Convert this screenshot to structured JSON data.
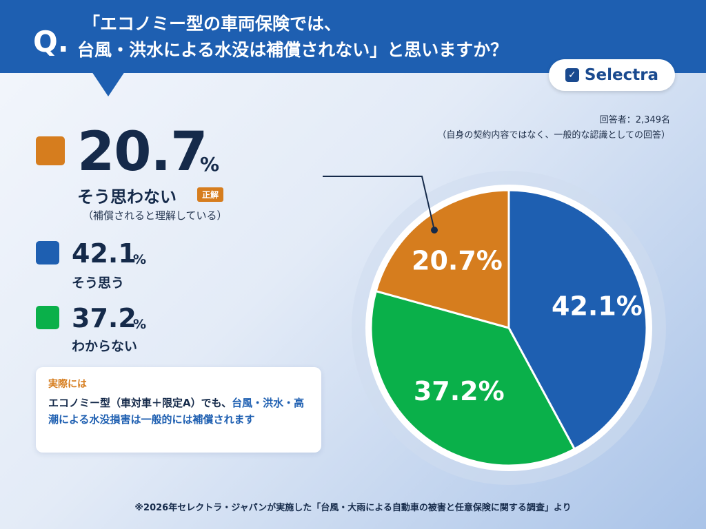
{
  "header": {
    "q_mark": "Q.",
    "title_line1": "「エコノミー型の車両保険では、",
    "title_line2": "台風・洪水による水没は補償されない」と思いますか？"
  },
  "brand": {
    "name": "Selectra",
    "check_glyph": "✓"
  },
  "respondents": {
    "count_label": "回答者：2,349名",
    "note": "（自身の契約内容ではなく、一般的な認識としての回答）"
  },
  "legend": [
    {
      "value": "20.7",
      "unit": "%",
      "label": "そう思わない",
      "badge": "正解",
      "sub": "（補償されると理解している）",
      "color": "#d67d1e"
    },
    {
      "value": "42.1",
      "unit": "%",
      "label": "そう思う",
      "color": "#1e5fb1"
    },
    {
      "value": "37.2",
      "unit": "%",
      "label": "わからない",
      "color": "#0ab04a"
    }
  ],
  "note_card": {
    "title": "実際には",
    "body_prefix": "エコノミー型（車対車＋限定A）でも、",
    "body_highlight": "台風・洪水・高潮による水没損害は一般的には補償されます"
  },
  "footer": "※2026年セレクトラ・ジャパンが実施した「台風・大雨による自動車の被害と任意保険に関する調査」より",
  "chart_data": {
    "type": "pie",
    "slices": [
      {
        "name": "そう思う",
        "value": 42.1,
        "label": "42.1%",
        "color": "#1e5fb1"
      },
      {
        "name": "わからない",
        "value": 37.2,
        "label": "37.2%",
        "color": "#0ab04a"
      },
      {
        "name": "そう思わない",
        "value": 20.7,
        "label": "20.7%",
        "color": "#d67d1e"
      }
    ],
    "start": "12 o'clock",
    "direction": "clockwise"
  }
}
